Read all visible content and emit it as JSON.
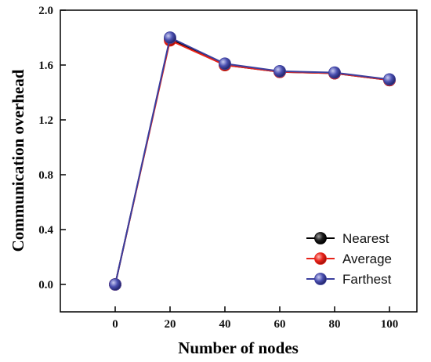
{
  "chart_data": {
    "type": "line",
    "x": [
      0,
      20,
      40,
      60,
      80,
      100
    ],
    "xlabel": "Number of nodes",
    "ylabel": "Communication overhead",
    "xlim": [
      -20,
      110
    ],
    "ylim": [
      -0.2,
      2.0
    ],
    "xticks": [
      0,
      20,
      40,
      60,
      80,
      100
    ],
    "yticks": [
      0.0,
      0.4,
      0.8,
      1.2,
      1.6,
      2.0
    ],
    "x_tick_labels": [
      "0",
      "20",
      "40",
      "60",
      "80",
      "100"
    ],
    "y_tick_labels": [
      "0.0",
      "0.4",
      "0.8",
      "1.2",
      "1.6",
      "2.0"
    ],
    "grid": false,
    "legend_position": "bottom-right",
    "series": [
      {
        "name": "Nearest",
        "color": "#000000",
        "values": [
          0.0,
          1.79,
          1.6,
          1.55,
          1.54,
          1.49
        ]
      },
      {
        "name": "Average",
        "color": "#e8231a",
        "values": [
          0.0,
          1.78,
          1.6,
          1.55,
          1.54,
          1.49
        ]
      },
      {
        "name": "Farthest",
        "color": "#3b3f9e",
        "values": [
          0.0,
          1.8,
          1.61,
          1.555,
          1.545,
          1.495
        ]
      }
    ]
  }
}
